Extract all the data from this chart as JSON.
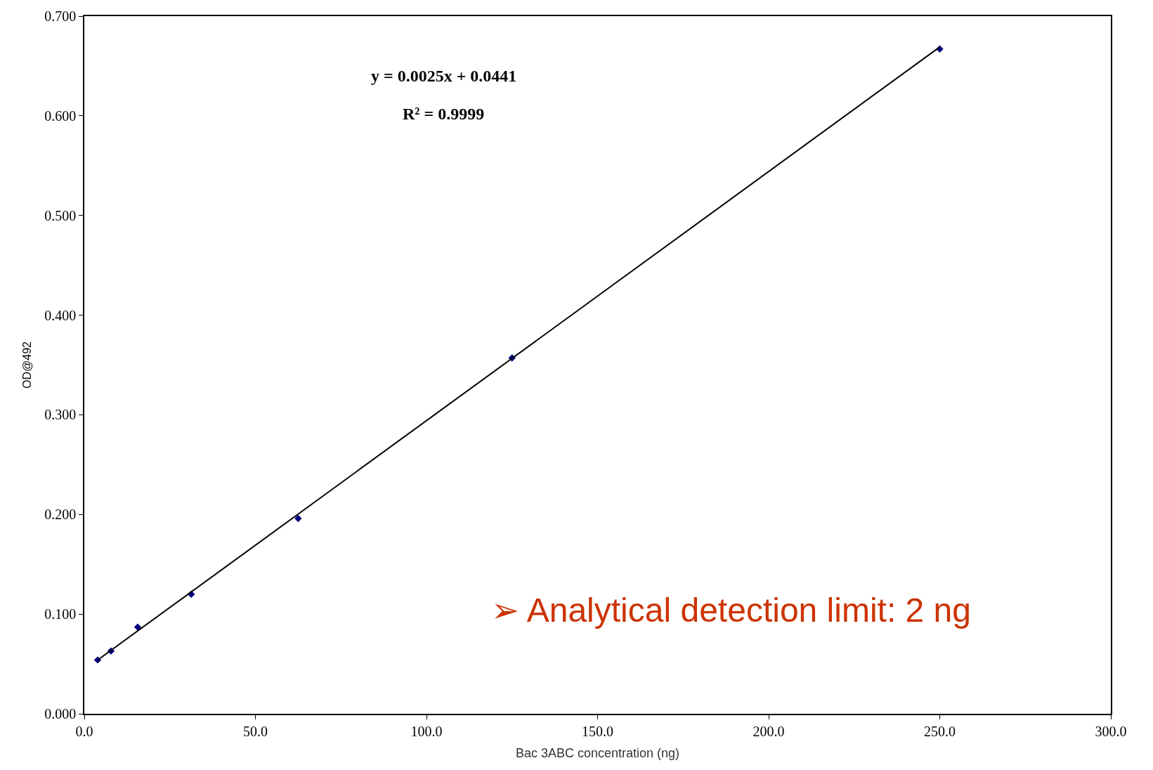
{
  "chart_data": {
    "type": "scatter",
    "xlabel": "Bac 3ABC concentration (ng)",
    "ylabel": "OD@492",
    "series": [
      {
        "color": "#000080",
        "marker": "diamond",
        "x": [
          3.9,
          7.8,
          15.6,
          31.25,
          62.5,
          125,
          250
        ],
        "values": [
          0.054,
          0.063,
          0.087,
          0.12,
          0.196,
          0.357,
          0.667
        ]
      },
      {
        "type": "line",
        "color": "#000000",
        "marker": "none",
        "line_style": "solid",
        "x": [
          3.9,
          250
        ],
        "values": [
          0.0539,
          0.6691
        ]
      }
    ],
    "xlim": [
      0,
      300
    ],
    "ylim": [
      0,
      0.7
    ],
    "xticks": [
      {
        "value": 0,
        "label": "0.0"
      },
      {
        "value": 50,
        "label": "50.0"
      },
      {
        "value": 100,
        "label": "100.0"
      },
      {
        "value": 150,
        "label": "150.0"
      },
      {
        "value": 200,
        "label": "200.0"
      },
      {
        "value": 250,
        "label": "250.0"
      },
      {
        "value": 300,
        "label": "300.0"
      }
    ],
    "yticks": [
      {
        "value": 0,
        "label": "0.000"
      },
      {
        "value": 0.1,
        "label": "0.100"
      },
      {
        "value": 0.2,
        "label": "0.200"
      },
      {
        "value": 0.3,
        "label": "0.300"
      },
      {
        "value": 0.4,
        "label": "0.400"
      },
      {
        "value": 0.5,
        "label": "0.500"
      },
      {
        "value": 0.6,
        "label": "0.600"
      },
      {
        "value": 0.7,
        "label": "0.700"
      }
    ],
    "annotations": [
      "y = 0.0025x + 0.0441",
      "R² = 0.9999",
      "➢ Analytical detection limit: 2 ng"
    ]
  }
}
